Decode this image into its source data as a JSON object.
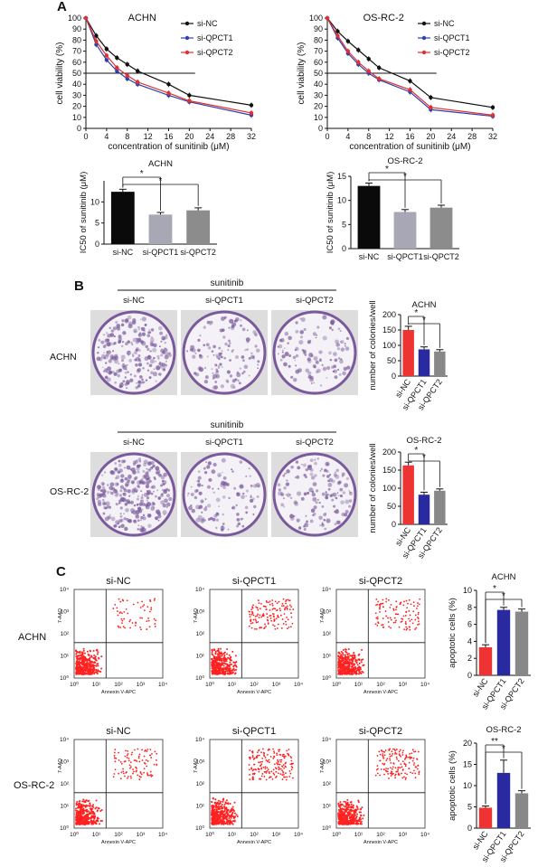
{
  "panels": {
    "a": "A",
    "b": "B",
    "c": "C"
  },
  "colors": {
    "nc_line": "#111111",
    "qpct1_line": "#3040b0",
    "qpct2_line": "#e03030",
    "bar_black": "#0a0a0a",
    "bar_gray1": "#a8a8b4",
    "bar_gray2": "#8c8c8c",
    "bar_red": "#ee3333",
    "bar_blue": "#2a2aa0",
    "bar_gray3": "#888888",
    "plate_purple": "#7a5a9c",
    "dot_red": "#ff2020"
  },
  "chart_data": [
    {
      "id": "achn_viability",
      "type": "line",
      "title": "ACHN",
      "xlabel": "concentration of sunitinib (μM)",
      "ylabel": "cell viability (%)",
      "xlim": [
        0,
        32
      ],
      "ylim": [
        0,
        100
      ],
      "xticks": [
        0,
        4,
        8,
        12,
        16,
        20,
        24,
        28,
        32
      ],
      "yticks": [
        0,
        10,
        20,
        30,
        40,
        50,
        60,
        70,
        80,
        90,
        100
      ],
      "reference_line": 50,
      "x": [
        0,
        2,
        4,
        6,
        8,
        10,
        16,
        20,
        32
      ],
      "series": [
        {
          "name": "si-NC",
          "values": [
            100,
            84,
            72,
            64,
            58,
            52,
            40,
            30,
            21
          ]
        },
        {
          "name": "si-QPCT1",
          "values": [
            100,
            76,
            62,
            52,
            45,
            40,
            30,
            24,
            12
          ]
        },
        {
          "name": "si-QPCT2",
          "values": [
            100,
            79,
            66,
            55,
            48,
            42,
            32,
            25,
            14
          ]
        }
      ]
    },
    {
      "id": "osrc2_viability",
      "type": "line",
      "title": "OS-RC-2",
      "xlabel": "concentration of sunitinib (μM)",
      "ylabel": "cell viability (%)",
      "xlim": [
        0,
        32
      ],
      "ylim": [
        0,
        100
      ],
      "xticks": [
        0,
        4,
        8,
        12,
        16,
        20,
        24,
        28,
        32
      ],
      "yticks": [
        0,
        10,
        20,
        30,
        40,
        50,
        60,
        70,
        80,
        90,
        100
      ],
      "reference_line": 50,
      "x": [
        0,
        2,
        4,
        6,
        8,
        10,
        16,
        20,
        32
      ],
      "series": [
        {
          "name": "si-NC",
          "values": [
            100,
            88,
            79,
            71,
            63,
            55,
            43,
            28,
            19
          ]
        },
        {
          "name": "si-QPCT1",
          "values": [
            100,
            82,
            68,
            58,
            50,
            44,
            33,
            17,
            11
          ]
        },
        {
          "name": "si-QPCT2",
          "values": [
            100,
            84,
            70,
            60,
            52,
            45,
            35,
            19,
            12
          ]
        }
      ]
    },
    {
      "id": "achn_ic50",
      "type": "bar",
      "title": "ACHN",
      "ylabel": "IC50 of sunitinib (μM)",
      "ylim": [
        0,
        15
      ],
      "yticks": [
        0,
        5,
        10
      ],
      "categories": [
        "si-NC",
        "si-QPCT1",
        "si-QPCT2"
      ],
      "values": [
        12.4,
        7.0,
        8.0
      ],
      "errors": [
        0.6,
        0.5,
        0.6
      ],
      "significance": [
        "*",
        "*"
      ]
    },
    {
      "id": "osrc2_ic50",
      "type": "bar",
      "title": "OS-RC-2",
      "ylabel": "IC50 of sunitinib (μM)",
      "ylim": [
        0,
        15
      ],
      "yticks": [
        0,
        5,
        10,
        15
      ],
      "categories": [
        "si-NC",
        "si-QPCT1",
        "si-QPCT2"
      ],
      "values": [
        13.0,
        7.6,
        8.5
      ],
      "errors": [
        0.6,
        0.5,
        0.5
      ],
      "significance": [
        "*",
        "*"
      ]
    },
    {
      "id": "achn_colonies",
      "type": "bar",
      "title": "ACHN",
      "ylabel": "number of colonies/well",
      "ylim": [
        0,
        200
      ],
      "yticks": [
        0,
        50,
        100,
        150,
        200
      ],
      "categories": [
        "si-NC",
        "si-QPCT1",
        "si-QPCT2"
      ],
      "values": [
        150,
        87,
        80
      ],
      "errors": [
        12,
        8,
        6
      ],
      "significance": [
        "*",
        "*"
      ]
    },
    {
      "id": "osrc2_colonies",
      "type": "bar",
      "title": "OS-RC-2",
      "ylabel": "number of colonies/well",
      "ylim": [
        0,
        200
      ],
      "yticks": [
        0,
        50,
        100,
        150,
        200
      ],
      "categories": [
        "si-NC",
        "si-QPCT1",
        "si-QPCT2"
      ],
      "values": [
        163,
        82,
        93
      ],
      "errors": [
        9,
        7,
        5
      ],
      "significance": [
        "*",
        "*"
      ]
    },
    {
      "id": "achn_apoptosis",
      "type": "bar",
      "title": "ACHN",
      "ylabel": "apoptotic cells (%)",
      "ylim": [
        0,
        10
      ],
      "yticks": [
        0,
        2,
        4,
        6,
        8,
        10
      ],
      "categories": [
        "si-NC",
        "si-QPCT1",
        "si-QPCT2"
      ],
      "values": [
        3.3,
        7.7,
        7.5
      ],
      "errors": [
        0.3,
        0.3,
        0.3
      ],
      "significance": [
        "*",
        "*"
      ]
    },
    {
      "id": "osrc2_apoptosis",
      "type": "bar",
      "title": "OS-RC-2",
      "ylabel": "apoptotic cells (%)",
      "ylim": [
        0,
        20
      ],
      "yticks": [
        0,
        5,
        10,
        15,
        20
      ],
      "categories": [
        "si-NC",
        "si-QPCT1",
        "si-QPCT2"
      ],
      "values": [
        4.8,
        13.0,
        8.2
      ],
      "errors": [
        0.4,
        3.0,
        0.6
      ],
      "significance": [
        "**",
        "*"
      ]
    }
  ],
  "colony": {
    "header": "sunitinib",
    "columns": [
      "si-NC",
      "si-QPCT1",
      "si-QPCT2"
    ],
    "rows": [
      "ACHN",
      "OS-RC-2"
    ]
  },
  "flow": {
    "columns": [
      "si-NC",
      "si-QPCT1",
      "si-QPCT2"
    ],
    "rows": [
      "ACHN",
      "OS-RC-2"
    ],
    "xlabel": "Annexin V-APC",
    "ylabel": "7-AAD",
    "ticks": [
      "10⁰",
      "10¹",
      "10²",
      "10³",
      "10⁴"
    ]
  }
}
